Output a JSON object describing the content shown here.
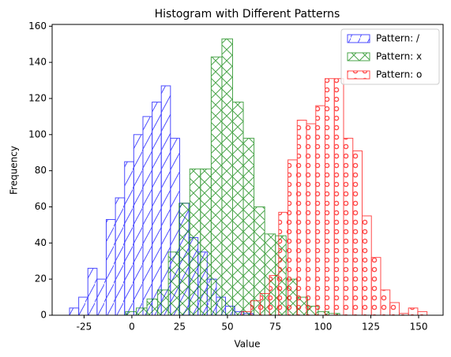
{
  "chart_data": {
    "type": "histogram",
    "title": "Histogram with Different Patterns",
    "xlabel": "Value",
    "ylabel": "Frequency",
    "xlim": [
      -41.7,
      162.8
    ],
    "ylim": [
      0,
      161
    ],
    "xticks": [
      -25,
      0,
      25,
      50,
      75,
      100,
      125,
      150
    ],
    "yticks": [
      0,
      20,
      40,
      60,
      80,
      100,
      120,
      140,
      160
    ],
    "legend": "upper right",
    "series": [
      {
        "name": "Pattern: /",
        "color": "blue",
        "hatch": "/",
        "bins": [
          -32.6,
          -27.8,
          -23,
          -18.2,
          -13.4,
          -8.6,
          -3.8,
          1,
          5.8,
          10.6,
          15.4,
          20.2,
          25,
          29.8,
          34.6,
          39.4,
          44.2,
          49,
          53.8,
          58.6,
          63.4
        ],
        "counts": [
          4,
          10,
          26,
          20,
          53,
          65,
          85,
          100,
          110,
          118,
          127,
          98,
          62,
          43,
          35,
          20,
          10,
          5,
          2,
          1
        ]
      },
      {
        "name": "Pattern: x",
        "color": "green",
        "hatch": "x",
        "bins": [
          -3.3,
          2.3,
          7.9,
          13.5,
          19.1,
          24.7,
          30.3,
          35.9,
          41.5,
          47.1,
          52.7,
          58.3,
          63.9,
          69.5,
          75.1,
          80.7,
          86.3,
          91.9,
          97.5,
          103.1,
          108.7
        ],
        "counts": [
          2,
          4,
          9,
          14,
          35,
          62,
          81,
          81,
          143,
          153,
          118,
          98,
          60,
          45,
          44,
          20,
          10,
          5,
          2,
          1
        ]
      },
      {
        "name": "Pattern: o",
        "color": "red",
        "hatch": "o",
        "bins": [
          57.4,
          62.25,
          67.1,
          71.95,
          76.8,
          81.65,
          86.5,
          91.35,
          96.2,
          101.05,
          105.9,
          110.75,
          115.6,
          120.45,
          125.3,
          130.15,
          135,
          139.85,
          144.7,
          149.55,
          154.4
        ],
        "counts": [
          2,
          8,
          12,
          22,
          57,
          86,
          108,
          106,
          116,
          131,
          131,
          98,
          91,
          55,
          32,
          14,
          7,
          1,
          4,
          2
        ]
      }
    ]
  }
}
